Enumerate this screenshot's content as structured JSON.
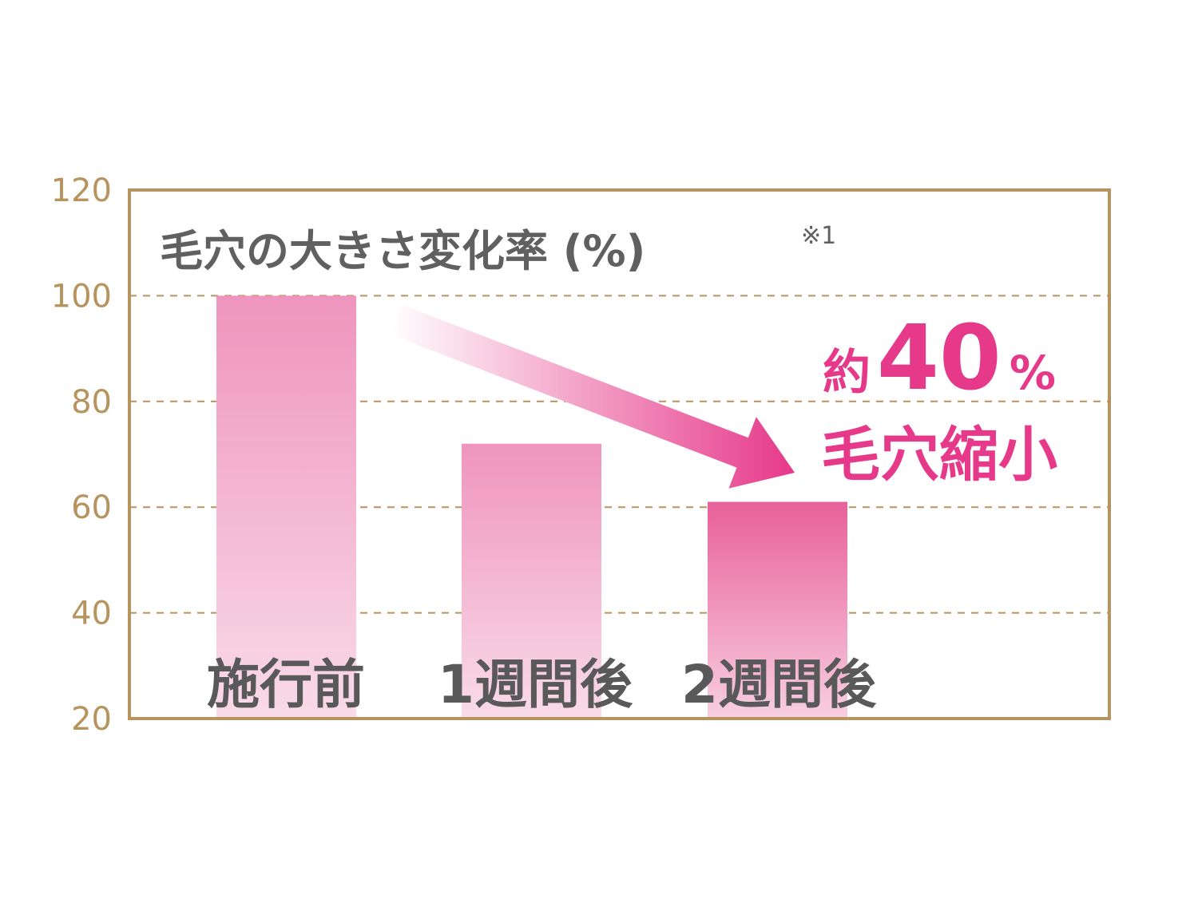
{
  "chart_data": {
    "type": "bar",
    "title": "毛穴の大きさ変化率 (%)",
    "title_note": "※1",
    "categories": [
      "施行前",
      "1週間後",
      "2週間後"
    ],
    "values": [
      100,
      72,
      61
    ],
    "ylim": [
      20,
      120
    ],
    "yticks": [
      "20",
      "40",
      "60",
      "80",
      "100",
      "120"
    ],
    "grid": true,
    "annotation": {
      "prefix": "約",
      "value": "40",
      "unit": "%",
      "text": "毛穴縮小"
    },
    "colors": {
      "bar": "#ef94bd",
      "bar_highlight": "#e8609a",
      "accent": "#e6398a",
      "frame": "#b7935e",
      "text": "#595959"
    }
  }
}
